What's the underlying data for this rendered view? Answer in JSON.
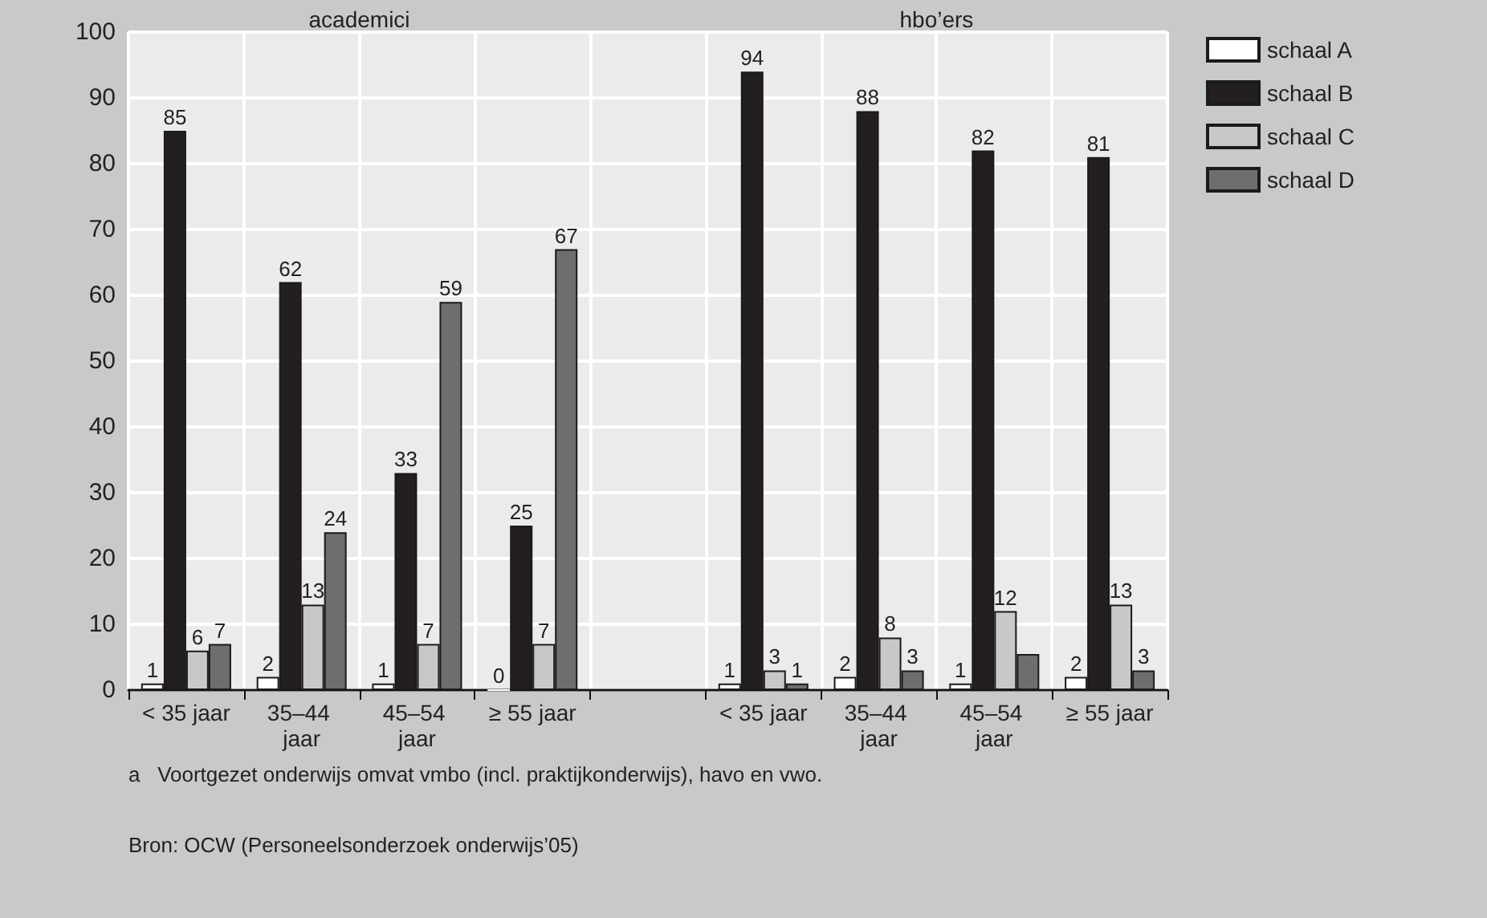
{
  "chart_data": {
    "type": "bar",
    "categories": [
      "< 35 jaar",
      "35–44 jaar",
      "45–54 jaar",
      "≥ 55 jaar",
      null,
      "< 35 jaar",
      "35–44 jaar",
      "45–54 jaar",
      "≥ 55 jaar"
    ],
    "series": [
      {
        "name": "schaal A",
        "color": "#ffffff",
        "values": [
          1,
          2,
          1,
          0,
          null,
          1,
          2,
          1,
          2
        ],
        "value_labels": [
          "1",
          "2",
          "1",
          "0",
          null,
          "1",
          "2",
          "1",
          "2"
        ]
      },
      {
        "name": "schaal B",
        "color": "#231f20",
        "values": [
          85,
          62,
          33,
          25,
          null,
          94,
          88,
          82,
          81
        ],
        "value_labels": [
          "85",
          "62",
          "33",
          "25",
          null,
          "94",
          "88",
          "82",
          "81"
        ]
      },
      {
        "name": "schaal C",
        "color": "#c8c8c8",
        "values": [
          6,
          13,
          7,
          7,
          null,
          3,
          8,
          12,
          13
        ],
        "value_labels": [
          "6",
          "13",
          "7",
          "7",
          null,
          "3",
          "8",
          "12",
          "13"
        ]
      },
      {
        "name": "schaal D",
        "color": "#6d6e70",
        "values": [
          7,
          24,
          59,
          67,
          null,
          1,
          3,
          5.5,
          3
        ],
        "value_labels": [
          "7",
          "24",
          "59",
          "67",
          null,
          "1",
          "3",
          null,
          "3"
        ]
      }
    ],
    "ylim": [
      0,
      100
    ],
    "yticks": [
      0,
      10,
      20,
      30,
      40,
      50,
      60,
      70,
      80,
      90,
      100
    ],
    "grid": true,
    "legend": "top right",
    "annotations": [
      "academici",
      "hbo’ers",
      "a   Voortgezet onderwijs omvat vmbo (incl. praktijkonderwijs), havo en vwo.",
      "Bron: OCW (Personeelsonderzoek onderwijs’05)"
    ]
  }
}
